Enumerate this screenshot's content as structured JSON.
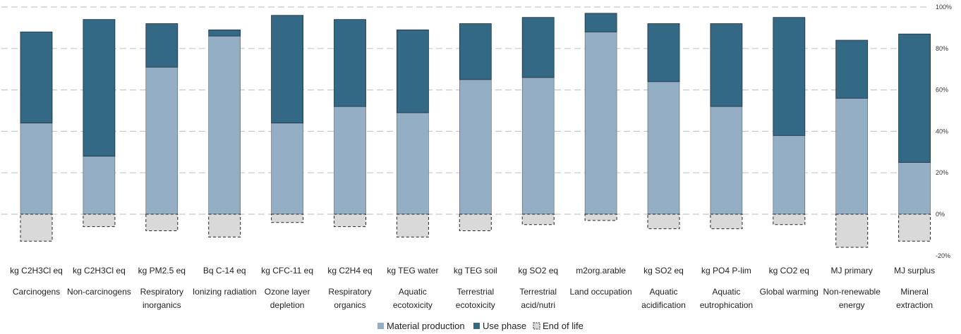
{
  "chart_data": {
    "type": "bar",
    "stacked": true,
    "units": [
      "kg C2H3Cl eq",
      "kg C2H3Cl eq",
      "kg PM2.5 eq",
      "Bq C-14 eq",
      "kg CFC-11 eq",
      "kg C2H4 eq",
      "kg TEG water",
      "kg TEG soil",
      "kg SO2 eq",
      "m2org.arable",
      "kg SO2 eq",
      "kg PO4 P-lim",
      "kg CO2 eq",
      "MJ primary",
      "MJ surplus"
    ],
    "categories": [
      [
        "Carcinogens"
      ],
      [
        "Non-carcinogens"
      ],
      [
        "Respiratory",
        "inorganics"
      ],
      [
        "Ionizing radiation"
      ],
      [
        "Ozone layer",
        "depletion"
      ],
      [
        "Respiratory",
        "organics"
      ],
      [
        "Aquatic",
        "ecotoxicity"
      ],
      [
        "Terrestrial",
        "ecotoxicity"
      ],
      [
        "Terrestrial",
        "acid/nutri"
      ],
      [
        "Land occupation"
      ],
      [
        "Aquatic",
        "acidification"
      ],
      [
        "Aquatic",
        "eutrophication"
      ],
      [
        "Global warming"
      ],
      [
        "Non-renewable",
        "energy"
      ],
      [
        "Mineral",
        "extraction"
      ]
    ],
    "series": [
      {
        "name": "Material production",
        "color": "#94afc5",
        "values": [
          44,
          28,
          71,
          86,
          44,
          52,
          49,
          65,
          66,
          88,
          64,
          52,
          38,
          56,
          25
        ]
      },
      {
        "name": "Use phase",
        "color": "#336985",
        "values": [
          44,
          66,
          21,
          3,
          52,
          42,
          40,
          27,
          29,
          9,
          28,
          40,
          57,
          28,
          62
        ]
      },
      {
        "name": "End of life",
        "color": "#d9d9d9",
        "pattern": "dashed-outline",
        "values": [
          -13,
          -6,
          -8,
          -11,
          -4,
          -6,
          -11,
          -8,
          -5,
          -3,
          -7,
          -7,
          -5,
          -16,
          -13
        ]
      }
    ],
    "ylim": [
      -20,
      100
    ],
    "yticks": [
      "100%",
      "80%",
      "60%",
      "40%",
      "20%",
      "0%",
      "-20%"
    ],
    "ytick_values": [
      100,
      80,
      60,
      40,
      20,
      0,
      -20
    ],
    "grid": true,
    "legend_position": "bottom-center",
    "title": "",
    "xlabel": "",
    "ylabel": ""
  }
}
